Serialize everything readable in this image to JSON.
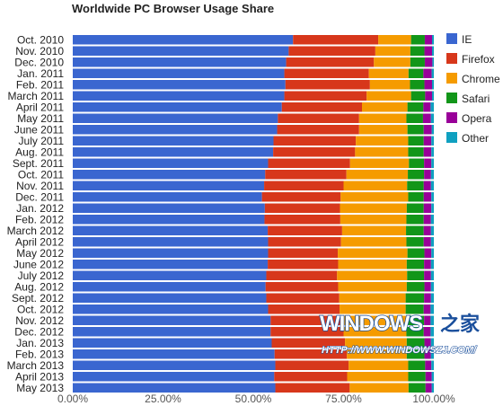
{
  "chart_data": {
    "type": "bar",
    "orientation": "horizontal",
    "stacked": "percent",
    "title": "Worldwide PC Browser Usage Share",
    "xlabel": "",
    "ylabel": "",
    "xlim": [
      0,
      100
    ],
    "x_ticks": [
      "0.00%",
      "25.00%",
      "50.00%",
      "75.00%",
      "100.00%"
    ],
    "legend_position": "right",
    "grid": false,
    "categories": [
      "Oct. 2010",
      "Nov. 2010",
      "Dec. 2010",
      "Jan. 2011",
      "Feb. 2011",
      "March 2011",
      "April 2011",
      "May 2011",
      "June 2011",
      "July 2011",
      "Aug. 2011",
      "Sept. 2011",
      "Oct. 2011",
      "Nov. 2011",
      "Dec. 2011",
      "Jan. 2012",
      "Feb. 2012",
      "March 2012",
      "April 2012",
      "May 2012",
      "June 2012",
      "July 2012",
      "Aug. 2012",
      "Sept. 2012",
      "Oct. 2012",
      "Nov. 2012",
      "Dec. 2012",
      "Jan. 2013",
      "Feb. 2013",
      "March 2013",
      "April 2013",
      "May 2013"
    ],
    "series": [
      {
        "name": "IE",
        "color": "#3a66d0",
        "values": [
          61.0,
          59.8,
          59.1,
          58.6,
          58.9,
          58.6,
          57.9,
          56.8,
          56.6,
          55.6,
          55.5,
          54.1,
          53.3,
          53.0,
          52.4,
          53.2,
          53.1,
          54.0,
          54.1,
          54.1,
          54.0,
          53.6,
          53.4,
          53.6,
          54.1,
          54.8,
          54.8,
          55.1,
          55.9,
          56.1,
          55.8,
          56.1
        ]
      },
      {
        "name": "Firefox",
        "color": "#d7371b",
        "values": [
          23.6,
          24.0,
          24.3,
          23.4,
          23.4,
          22.8,
          22.2,
          22.5,
          22.7,
          22.8,
          22.7,
          22.7,
          22.5,
          22.0,
          21.8,
          20.8,
          21.0,
          20.6,
          20.2,
          19.3,
          19.5,
          19.6,
          20.1,
          20.2,
          19.8,
          20.0,
          20.2,
          20.3,
          20.0,
          20.3,
          20.2,
          20.6
        ]
      },
      {
        "name": "Chrome",
        "color": "#f59b00",
        "values": [
          9.1,
          9.7,
          10.1,
          11.0,
          11.1,
          12.3,
          12.6,
          13.1,
          13.4,
          14.5,
          14.7,
          16.3,
          17.0,
          17.6,
          18.7,
          18.5,
          18.3,
          17.7,
          18.1,
          19.3,
          19.0,
          19.4,
          19.0,
          18.4,
          18.3,
          17.6,
          17.4,
          17.1,
          16.6,
          16.5,
          16.9,
          16.3
        ]
      },
      {
        "name": "Safari",
        "color": "#129619",
        "values": [
          3.8,
          3.9,
          4.0,
          4.1,
          4.0,
          3.9,
          4.4,
          4.6,
          4.5,
          4.3,
          4.3,
          4.2,
          4.5,
          4.6,
          4.3,
          4.7,
          4.8,
          4.9,
          4.8,
          4.7,
          4.8,
          4.7,
          4.9,
          5.1,
          5.0,
          4.9,
          4.8,
          4.9,
          4.9,
          4.7,
          4.8,
          4.7
        ]
      },
      {
        "name": "Opera",
        "color": "#990099",
        "values": [
          2.0,
          2.1,
          2.1,
          2.3,
          2.1,
          1.9,
          2.0,
          2.2,
          2.2,
          2.1,
          2.1,
          2.0,
          1.9,
          2.0,
          2.1,
          2.1,
          2.0,
          2.0,
          2.0,
          1.9,
          1.9,
          1.9,
          1.8,
          1.9,
          1.9,
          1.8,
          1.9,
          1.8,
          1.8,
          1.7,
          1.7,
          1.7
        ]
      },
      {
        "name": "Other",
        "color": "#0fa0c0",
        "values": [
          0.5,
          0.5,
          0.4,
          0.6,
          0.5,
          0.5,
          0.9,
          0.8,
          0.6,
          0.7,
          0.7,
          0.7,
          0.8,
          0.8,
          0.7,
          0.7,
          0.8,
          0.8,
          0.8,
          0.7,
          0.8,
          0.8,
          0.8,
          0.8,
          0.9,
          0.9,
          0.9,
          0.8,
          0.8,
          0.7,
          0.6,
          0.6
        ]
      }
    ]
  },
  "watermark": {
    "brand": "WINDOWS",
    "brand_cn": "之家",
    "url": "HTTP://WWW.WINDOWSZJ.COM/",
    "color": "#1a4f9c"
  }
}
